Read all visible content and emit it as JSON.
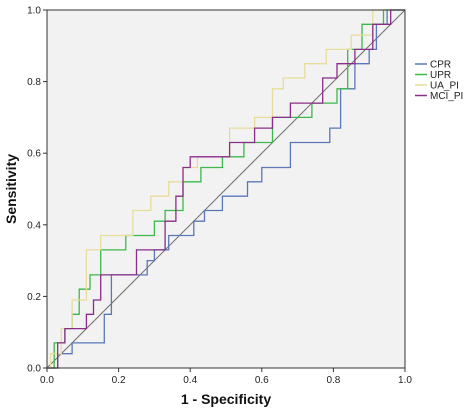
{
  "chart_data": {
    "type": "line",
    "xlabel": "1 - Specificity",
    "ylabel": "Sensitivity",
    "xlim": [
      0,
      1
    ],
    "ylim": [
      0,
      1
    ],
    "xticks": [
      "0.0",
      "0.2",
      "0.4",
      "0.6",
      "0.8",
      "1.0"
    ],
    "yticks": [
      "0.0",
      "0.2",
      "0.4",
      "0.6",
      "0.8",
      "1.0"
    ],
    "grid": false,
    "legend_position": "right",
    "plot_background": "#f2f2f2",
    "series": [
      {
        "name": "CPR",
        "color": "#5a78b8",
        "x": [
          0,
          0.03,
          0.03,
          0.07,
          0.07,
          0.16,
          0.16,
          0.18,
          0.18,
          0.28,
          0.28,
          0.3,
          0.3,
          0.34,
          0.34,
          0.41,
          0.41,
          0.44,
          0.44,
          0.49,
          0.49,
          0.56,
          0.56,
          0.6,
          0.6,
          0.68,
          0.68,
          0.79,
          0.79,
          0.82,
          0.82,
          0.86,
          0.86,
          0.9,
          0.9,
          0.92,
          0.92,
          0.95,
          0.95,
          1.0,
          1.0
        ],
        "y": [
          0,
          0,
          0.04,
          0.04,
          0.07,
          0.07,
          0.15,
          0.15,
          0.26,
          0.26,
          0.3,
          0.3,
          0.33,
          0.33,
          0.37,
          0.37,
          0.41,
          0.41,
          0.44,
          0.44,
          0.48,
          0.48,
          0.52,
          0.52,
          0.56,
          0.56,
          0.63,
          0.63,
          0.67,
          0.67,
          0.78,
          0.78,
          0.85,
          0.85,
          0.89,
          0.89,
          0.96,
          0.96,
          1.0,
          1.0,
          1.0
        ]
      },
      {
        "name": "UPR",
        "color": "#3db84a",
        "x": [
          0,
          0.02,
          0.02,
          0.05,
          0.05,
          0.07,
          0.07,
          0.09,
          0.09,
          0.12,
          0.12,
          0.15,
          0.15,
          0.22,
          0.22,
          0.3,
          0.3,
          0.33,
          0.33,
          0.38,
          0.38,
          0.43,
          0.43,
          0.49,
          0.49,
          0.55,
          0.55,
          0.63,
          0.63,
          0.74,
          0.74,
          0.81,
          0.81,
          0.84,
          0.84,
          0.88,
          0.88,
          0.94,
          0.94,
          1.0,
          1.0
        ],
        "y": [
          0,
          0,
          0.07,
          0.07,
          0.11,
          0.11,
          0.15,
          0.15,
          0.22,
          0.22,
          0.26,
          0.26,
          0.33,
          0.33,
          0.37,
          0.37,
          0.41,
          0.41,
          0.44,
          0.44,
          0.52,
          0.52,
          0.56,
          0.56,
          0.59,
          0.59,
          0.63,
          0.63,
          0.7,
          0.7,
          0.74,
          0.74,
          0.78,
          0.78,
          0.89,
          0.89,
          0.96,
          0.96,
          1.0,
          1.0,
          1.0
        ]
      },
      {
        "name": "UA_PI",
        "color": "#e6dd9a",
        "x": [
          0,
          0.01,
          0.01,
          0.04,
          0.04,
          0.07,
          0.07,
          0.11,
          0.11,
          0.15,
          0.15,
          0.24,
          0.24,
          0.29,
          0.29,
          0.34,
          0.34,
          0.38,
          0.38,
          0.42,
          0.42,
          0.51,
          0.51,
          0.58,
          0.58,
          0.63,
          0.63,
          0.66,
          0.66,
          0.72,
          0.72,
          0.78,
          0.78,
          0.85,
          0.85,
          0.91,
          0.91,
          0.95,
          0.95,
          1.0,
          1.0
        ],
        "y": [
          0,
          0,
          0.04,
          0.04,
          0.11,
          0.11,
          0.19,
          0.19,
          0.33,
          0.33,
          0.37,
          0.37,
          0.44,
          0.44,
          0.48,
          0.48,
          0.52,
          0.52,
          0.56,
          0.56,
          0.59,
          0.59,
          0.67,
          0.67,
          0.7,
          0.7,
          0.78,
          0.78,
          0.81,
          0.81,
          0.85,
          0.85,
          0.89,
          0.89,
          0.93,
          0.93,
          1.0,
          1.0,
          1.0,
          1.0,
          1.0
        ]
      },
      {
        "name": "MCI_PI",
        "color": "#8a2d8a",
        "x": [
          0,
          0.03,
          0.03,
          0.05,
          0.05,
          0.11,
          0.11,
          0.13,
          0.13,
          0.15,
          0.15,
          0.25,
          0.25,
          0.33,
          0.33,
          0.36,
          0.36,
          0.38,
          0.38,
          0.4,
          0.4,
          0.51,
          0.51,
          0.58,
          0.58,
          0.63,
          0.63,
          0.68,
          0.68,
          0.77,
          0.77,
          0.81,
          0.81,
          0.86,
          0.86,
          0.91,
          0.91,
          0.96,
          0.96,
          1.0,
          1.0
        ],
        "y": [
          0,
          0,
          0.07,
          0.07,
          0.11,
          0.11,
          0.15,
          0.15,
          0.19,
          0.19,
          0.26,
          0.26,
          0.33,
          0.33,
          0.41,
          0.41,
          0.48,
          0.48,
          0.56,
          0.56,
          0.59,
          0.59,
          0.63,
          0.63,
          0.67,
          0.67,
          0.7,
          0.7,
          0.74,
          0.74,
          0.81,
          0.81,
          0.85,
          0.85,
          0.89,
          0.89,
          0.96,
          0.96,
          1.0,
          1.0,
          1.0
        ]
      }
    ]
  }
}
